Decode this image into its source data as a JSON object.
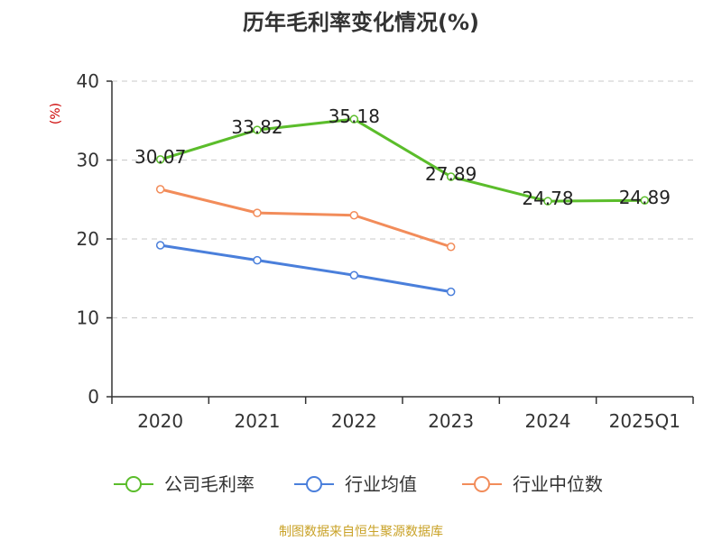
{
  "chart_data": {
    "type": "line",
    "title": "历年毛利率变化情况(%)",
    "ylabel": "(%)",
    "xlabel": "",
    "categories": [
      "2020",
      "2021",
      "2022",
      "2023",
      "2024",
      "2025Q1"
    ],
    "ylim": [
      0,
      40
    ],
    "yticks": [
      0,
      10,
      20,
      30,
      40
    ],
    "grid": true,
    "legend_position": "bottom",
    "series": [
      {
        "name": "公司毛利率",
        "color": "#5bbd2b",
        "values": [
          30.07,
          33.82,
          35.18,
          27.89,
          24.78,
          24.89
        ],
        "labels": [
          "30.07",
          "33.82",
          "35.18",
          "27.89",
          "24.78",
          "24.89"
        ]
      },
      {
        "name": "行业均值",
        "color": "#4a7fdb",
        "values": [
          19.2,
          17.3,
          15.4,
          13.3,
          null,
          null
        ],
        "labels": []
      },
      {
        "name": "行业中位数",
        "color": "#f28c5a",
        "values": [
          26.3,
          23.3,
          23.0,
          19.0,
          null,
          null
        ],
        "labels": []
      }
    ]
  },
  "source_text": "制图数据来自恒生聚源数据库"
}
